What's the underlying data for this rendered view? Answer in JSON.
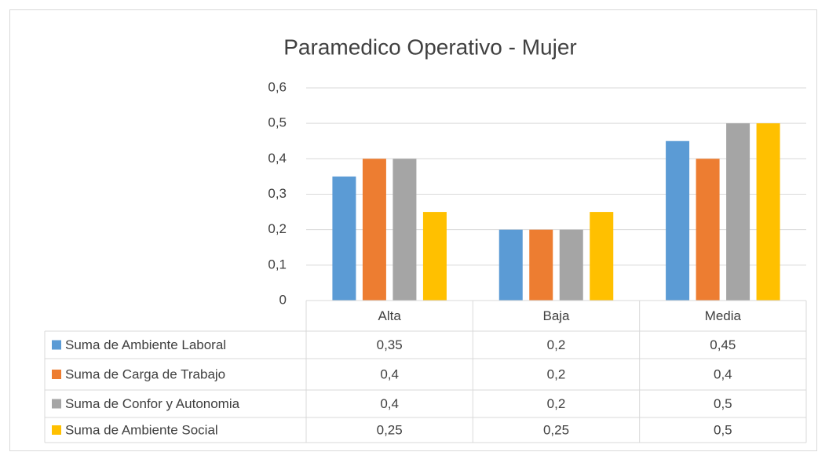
{
  "chart_data": {
    "type": "bar",
    "title": "Paramedico Operativo - Mujer",
    "categories": [
      "Alta",
      "Baja",
      "Media"
    ],
    "series": [
      {
        "name": "Suma de Ambiente Laboral",
        "color": "#5b9bd5",
        "values": [
          0.35,
          0.2,
          0.45
        ],
        "value_labels": [
          "0,35",
          "0,2",
          "0,45"
        ]
      },
      {
        "name": "Suma de Carga de Trabajo",
        "color": "#ed7d31",
        "values": [
          0.4,
          0.2,
          0.4
        ],
        "value_labels": [
          "0,4",
          "0,2",
          "0,4"
        ]
      },
      {
        "name": "Suma de Confor y Autonomia",
        "color": "#a5a5a5",
        "values": [
          0.4,
          0.2,
          0.5
        ],
        "value_labels": [
          "0,4",
          "0,2",
          "0,5"
        ]
      },
      {
        "name": "Suma de Ambiente Social",
        "color": "#ffc000",
        "values": [
          0.25,
          0.25,
          0.5
        ],
        "value_labels": [
          "0,25",
          "0,25",
          "0,5"
        ]
      }
    ],
    "ylim": [
      0,
      0.6
    ],
    "yticks": [
      0,
      {
        "value": 0.1,
        "label": "0,1"
      },
      {
        "value": 0.2,
        "label": "0,2"
      },
      {
        "value": 0.3,
        "label": "0,3"
      },
      {
        "value": 0.4,
        "label": "0,4"
      },
      {
        "value": 0.5,
        "label": "0,5"
      },
      {
        "value": 0.6,
        "label": "0,6"
      }
    ],
    "grid": true
  }
}
